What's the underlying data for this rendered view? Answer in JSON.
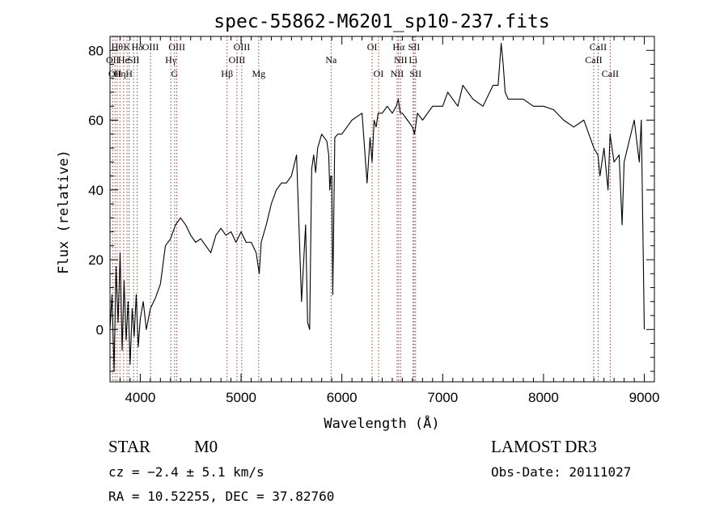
{
  "chart_data": {
    "type": "line",
    "title": "spec-55862-M6201_sp10-237.fits",
    "xlabel": "Wavelength (Å)",
    "ylabel": "Flux (relative)",
    "xlim": [
      3700,
      9100
    ],
    "ylim": [
      -15,
      84
    ],
    "x_ticks": [
      4000,
      5000,
      6000,
      7000,
      8000,
      9000
    ],
    "y_ticks": [
      0,
      20,
      40,
      60,
      80
    ],
    "series": [
      {
        "name": "flux",
        "x": [
          3700,
          3720,
          3740,
          3760,
          3780,
          3800,
          3820,
          3840,
          3860,
          3880,
          3900,
          3920,
          3940,
          3960,
          3980,
          4000,
          4030,
          4060,
          4100,
          4150,
          4200,
          4250,
          4300,
          4350,
          4400,
          4450,
          4500,
          4550,
          4600,
          4650,
          4700,
          4750,
          4800,
          4850,
          4900,
          4950,
          5000,
          5050,
          5100,
          5150,
          5180,
          5200,
          5250,
          5300,
          5350,
          5400,
          5450,
          5500,
          5550,
          5600,
          5640,
          5660,
          5680,
          5700,
          5720,
          5740,
          5760,
          5800,
          5850,
          5870,
          5880,
          5890,
          5900,
          5910,
          5930,
          5960,
          6000,
          6050,
          6100,
          6150,
          6200,
          6250,
          6280,
          6300,
          6320,
          6340,
          6360,
          6400,
          6450,
          6500,
          6540,
          6560,
          6580,
          6600,
          6650,
          6700,
          6720,
          6750,
          6800,
          6900,
          7000,
          7050,
          7100,
          7150,
          7200,
          7300,
          7400,
          7500,
          7550,
          7580,
          7600,
          7620,
          7650,
          7700,
          7800,
          7900,
          8000,
          8100,
          8200,
          8300,
          8400,
          8450,
          8500,
          8540,
          8560,
          8600,
          8640,
          8660,
          8700,
          8750,
          8780,
          8800,
          8850,
          8900,
          8950,
          8970,
          8990,
          9000
        ],
        "values": [
          0,
          10,
          -12,
          18,
          2,
          22,
          -6,
          14,
          -3,
          8,
          -10,
          6,
          -2,
          10,
          -5,
          3,
          8,
          0,
          6,
          9,
          13,
          24,
          26,
          30,
          32,
          30,
          27,
          25,
          26,
          24,
          22,
          27,
          29,
          27,
          28,
          25,
          28,
          25,
          25,
          22,
          16,
          25,
          30,
          36,
          40,
          42,
          42,
          44,
          50,
          8,
          30,
          2,
          0,
          46,
          50,
          45,
          52,
          56,
          54,
          50,
          40,
          44,
          44,
          10,
          55,
          56,
          56,
          58,
          60,
          61,
          62,
          42,
          55,
          48,
          60,
          58,
          62,
          62,
          64,
          62,
          64,
          66,
          62,
          62,
          60,
          58,
          56,
          62,
          60,
          64,
          64,
          68,
          66,
          64,
          70,
          66,
          64,
          70,
          70,
          82,
          76,
          68,
          66,
          66,
          66,
          64,
          64,
          63,
          60,
          58,
          60,
          56,
          52,
          50,
          44,
          52,
          40,
          56,
          48,
          50,
          30,
          48,
          54,
          60,
          48,
          60,
          20,
          0
        ]
      }
    ],
    "line_markers": [
      {
        "wavelength": 3727,
        "label": "OII",
        "row": 2
      },
      {
        "wavelength": 3750,
        "label": "OII",
        "row": 3
      },
      {
        "wavelength": 3771,
        "label": "Hθ",
        "row": 1
      },
      {
        "wavelength": 3798,
        "label": "Hη",
        "row": 3
      },
      {
        "wavelength": 3835,
        "label": "He",
        "row": 2
      },
      {
        "wavelength": 3869,
        "label": "K",
        "row": 1
      },
      {
        "wavelength": 3889,
        "label": "H",
        "row": 3
      },
      {
        "wavelength": 3934,
        "label": "SII",
        "row": 2
      },
      {
        "wavelength": 3970,
        "label": "Hδ",
        "row": 1
      },
      {
        "wavelength": 4102,
        "label": "OIII",
        "row": 1
      },
      {
        "wavelength": 4303,
        "label": "Hγ",
        "row": 2
      },
      {
        "wavelength": 4341,
        "label": "G",
        "row": 3
      },
      {
        "wavelength": 4363,
        "label": "OIII",
        "row": 1
      },
      {
        "wavelength": 4861,
        "label": "Hβ",
        "row": 3
      },
      {
        "wavelength": 4959,
        "label": "OIII",
        "row": 2
      },
      {
        "wavelength": 5007,
        "label": "OIII",
        "row": 1
      },
      {
        "wavelength": 5175,
        "label": "Mg",
        "row": 3
      },
      {
        "wavelength": 5893,
        "label": "Na",
        "row": 2
      },
      {
        "wavelength": 6300,
        "label": "OI",
        "row": 1
      },
      {
        "wavelength": 6364,
        "label": "OI",
        "row": 3
      },
      {
        "wavelength": 6548,
        "label": "NII",
        "row": 3
      },
      {
        "wavelength": 6563,
        "label": "Hα",
        "row": 1
      },
      {
        "wavelength": 6583,
        "label": "NII",
        "row": 2
      },
      {
        "wavelength": 6707,
        "label": "Li",
        "row": 2
      },
      {
        "wavelength": 6716,
        "label": "SII",
        "row": 1
      },
      {
        "wavelength": 6731,
        "label": "SII",
        "row": 3
      },
      {
        "wavelength": 8498,
        "label": "CaII",
        "row": 2
      },
      {
        "wavelength": 8542,
        "label": "CaII",
        "row": 1
      },
      {
        "wavelength": 8662,
        "label": "CaII",
        "row": 3
      }
    ]
  },
  "info": {
    "object_class": "STAR",
    "subclass": "M0",
    "survey": "LAMOST DR3",
    "redshift": "cz = −2.4 ± 5.1 km/s",
    "obs_date": "Obs-Date: 20111027",
    "coords": "RA =  10.52255, DEC =  37.82760"
  },
  "colors": {
    "marker_line": "#b03030",
    "spectrum": "#000000"
  }
}
